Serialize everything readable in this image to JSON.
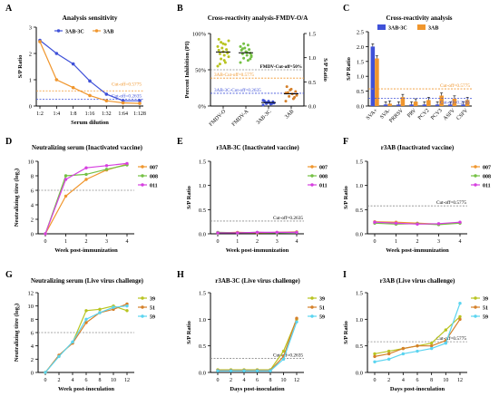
{
  "colors": {
    "blue": "#3F51D8",
    "orange": "#F0962D",
    "gray": "#8C8C8C",
    "green": "#74C044",
    "magenta": "#D63FE0",
    "cyan": "#5BD4F0",
    "olive": "#B8C420",
    "darkorange": "#D5802A",
    "refline": "#6E6E6E"
  },
  "chart_data": [
    {
      "id": "A",
      "panel_label": "A",
      "type": "line",
      "title": "Analysis sensitivity",
      "xlabel": "Serum dilution",
      "ylabel": "S/P Ratio",
      "categories": [
        "1:2",
        "1:4",
        "1:8",
        "1:16",
        "1:32",
        "1:64",
        "1:128"
      ],
      "ylim": [
        0,
        3
      ],
      "yticks": [
        "0",
        "1",
        "2",
        "3"
      ],
      "legend": [
        "3AB-3C",
        "3AB"
      ],
      "series": [
        {
          "name": "3AB-3C",
          "color": "blue",
          "values": [
            2.5,
            2.0,
            1.6,
            0.95,
            0.45,
            0.2,
            0.2
          ]
        },
        {
          "name": "3AB",
          "color": "orange",
          "values": [
            2.45,
            1.0,
            0.7,
            0.4,
            0.2,
            0.12,
            0.1
          ]
        }
      ],
      "reflines": [
        {
          "y": 0.5775,
          "color": "orange",
          "label": "Cut-off=0.5775"
        },
        {
          "y": 0.2635,
          "color": "blue",
          "label": "Cut-off=0.2635"
        }
      ]
    },
    {
      "id": "B",
      "panel_label": "B",
      "type": "scatter",
      "title": "Cross-reactivity analysis-FMDV-O/A",
      "ylabel": "Percent Inhibition (PI)",
      "y2label": "S/P Ratio",
      "categories": [
        "FMDV-O",
        "FMDV-A",
        "3AB-3C",
        "3AB"
      ],
      "yticks": [
        "0%",
        "50%",
        "100%"
      ],
      "y2ticks": [
        "0.0",
        "0.5",
        "1.0",
        "1.5"
      ],
      "points": [
        {
          "cat": "FMDV-O",
          "color": "olive",
          "pct": [
            55,
            60,
            65,
            68,
            70,
            72,
            74,
            75,
            77,
            78,
            80,
            82,
            85,
            88,
            90,
            63,
            58,
            73,
            86,
            92
          ]
        },
        {
          "cat": "FMDV-A",
          "color": "green",
          "pct": [
            60,
            63,
            66,
            68,
            70,
            72,
            73,
            75,
            77,
            78,
            80,
            82,
            84,
            86,
            70,
            74,
            79,
            65
          ]
        },
        {
          "cat": "3AB-3C",
          "color": "blue",
          "sp": [
            0.02,
            0.04,
            0.05,
            0.06,
            0.07,
            0.08,
            0.09,
            0.1,
            0.11,
            0.05,
            0.07,
            0.12
          ]
        },
        {
          "cat": "3AB",
          "color": "darkorange",
          "sp": [
            0.1,
            0.15,
            0.2,
            0.22,
            0.25,
            0.28,
            0.3,
            0.35,
            0.4,
            0.18,
            0.33,
            0.27
          ]
        }
      ],
      "reflines": [
        {
          "pct": 50,
          "color": "gray",
          "label": "FMDV-Cut-off=50%"
        },
        {
          "sp": 0.5775,
          "color": "orange",
          "label": "3AB-Cut-off=0.5775"
        },
        {
          "sp": 0.2635,
          "color": "blue",
          "label": "3AB-3C-Cut-off=0.2635"
        }
      ]
    },
    {
      "id": "C",
      "panel_label": "C",
      "type": "bar",
      "title": "Cross-reactivity analysis",
      "ylabel": "S/P Ratio",
      "categories": [
        "SVA+",
        "SVA-",
        "PRRSV",
        "PRV",
        "PCV2",
        "PCV3",
        "ASFV",
        "CSFV"
      ],
      "ylim": [
        0,
        2.5
      ],
      "yticks": [
        "0.0",
        "0.5",
        "1.0",
        "1.5",
        "2.0",
        "2.5"
      ],
      "legend": [
        "3AB-3C",
        "3AB"
      ],
      "series": [
        {
          "name": "3AB-3C",
          "color": "blue",
          "values": [
            2.0,
            0.05,
            0.05,
            0.05,
            0.05,
            0.05,
            0.05,
            0.05
          ]
        },
        {
          "name": "3AB",
          "color": "orange",
          "values": [
            1.6,
            0.08,
            0.3,
            0.15,
            0.2,
            0.35,
            0.25,
            0.2
          ]
        }
      ],
      "reflines": [
        {
          "y": 0.5775,
          "color": "orange",
          "label": "Cut-off=0.5775"
        },
        {
          "y": 0.2635,
          "color": "blue",
          "label": "Cut-off=0.2635"
        }
      ]
    },
    {
      "id": "D",
      "panel_label": "D",
      "type": "line",
      "title": "Neutralizing serum (Inactivated vaccine)",
      "xlabel": "Week post-immunization",
      "ylabel": "Neutralizing titre (log₂)",
      "categories": [
        "0",
        "1",
        "2",
        "3",
        "4"
      ],
      "ylim": [
        0,
        10
      ],
      "yticks": [
        "0",
        "2",
        "4",
        "6",
        "8",
        "10"
      ],
      "legend": [
        "007",
        "008",
        "011"
      ],
      "series": [
        {
          "name": "007",
          "color": "orange",
          "values": [
            0,
            5.2,
            7.5,
            8.8,
            9.6
          ]
        },
        {
          "name": "008",
          "color": "green",
          "values": [
            0,
            8.0,
            8.2,
            8.9,
            9.5
          ]
        },
        {
          "name": "011",
          "color": "magenta",
          "values": [
            0,
            7.5,
            9.1,
            9.4,
            9.7
          ]
        }
      ],
      "reflines": [
        {
          "y": 6,
          "color": "gray",
          "label": ""
        }
      ]
    },
    {
      "id": "E",
      "panel_label": "E",
      "type": "line",
      "title": "r3AB-3C (Inactivated vaccine)",
      "xlabel": "Week post-immunization",
      "ylabel": "S/P Ratio",
      "categories": [
        "0",
        "1",
        "2",
        "3",
        "4"
      ],
      "ylim": [
        0,
        1.5
      ],
      "yticks": [
        "0.0",
        "0.5",
        "1.0",
        "1.5"
      ],
      "legend": [
        "007",
        "008",
        "011"
      ],
      "series": [
        {
          "name": "007",
          "color": "orange",
          "values": [
            0.02,
            0.03,
            0.02,
            0.03,
            0.04
          ]
        },
        {
          "name": "008",
          "color": "green",
          "values": [
            0.03,
            0.02,
            0.03,
            0.02,
            0.03
          ]
        },
        {
          "name": "011",
          "color": "magenta",
          "values": [
            0.02,
            0.02,
            0.03,
            0.03,
            0.03
          ]
        }
      ],
      "reflines": [
        {
          "y": 0.2635,
          "color": "gray",
          "label": "Cut-off=0.2635"
        }
      ]
    },
    {
      "id": "F",
      "panel_label": "F",
      "type": "line",
      "title": "r3AB (Inactivated vaccine)",
      "xlabel": "Week post-immunization",
      "ylabel": "S/P Ratio",
      "categories": [
        "0",
        "1",
        "2",
        "3",
        "4"
      ],
      "ylim": [
        0,
        1.5
      ],
      "yticks": [
        "0.0",
        "0.5",
        "1.0",
        "1.5"
      ],
      "legend": [
        "007",
        "008",
        "011"
      ],
      "series": [
        {
          "name": "007",
          "color": "orange",
          "values": [
            0.25,
            0.24,
            0.22,
            0.2,
            0.23
          ]
        },
        {
          "name": "008",
          "color": "green",
          "values": [
            0.22,
            0.2,
            0.21,
            0.19,
            0.22
          ]
        },
        {
          "name": "011",
          "color": "magenta",
          "values": [
            0.24,
            0.22,
            0.2,
            0.21,
            0.24
          ]
        }
      ],
      "reflines": [
        {
          "y": 0.5775,
          "color": "gray",
          "label": "Cut-off=0.5775"
        }
      ]
    },
    {
      "id": "G",
      "panel_label": "G",
      "type": "line",
      "title": "Neutralizing serum (Live virus challenge)",
      "xlabel": "Week post-inoculation",
      "ylabel": "Neutralizing titre (log₂)",
      "categories": [
        "0",
        "2",
        "4",
        "6",
        "8",
        "10",
        "12"
      ],
      "ylim": [
        0,
        12
      ],
      "yticks": [
        "0",
        "2",
        "4",
        "6",
        "8",
        "10",
        "12"
      ],
      "legend": [
        "39",
        "51",
        "59"
      ],
      "series": [
        {
          "name": "39",
          "color": "olive",
          "values": [
            0,
            2.5,
            4.5,
            9.3,
            9.5,
            10,
            9.3
          ]
        },
        {
          "name": "51",
          "color": "darkorange",
          "values": [
            0,
            2.6,
            4.4,
            7.5,
            9.0,
            9.5,
            10.3
          ]
        },
        {
          "name": "59",
          "color": "cyan",
          "values": [
            0,
            2.4,
            4.6,
            8.0,
            9.0,
            9.8,
            10.0
          ]
        }
      ],
      "reflines": [
        {
          "y": 6,
          "color": "gray",
          "label": ""
        }
      ]
    },
    {
      "id": "H",
      "panel_label": "H",
      "type": "line",
      "title": "r3AB-3C (Live virus challenge)",
      "xlabel": "Days post-inoculation",
      "ylabel": "S/P Ratio",
      "categories": [
        "0",
        "2",
        "4",
        "6",
        "8",
        "10",
        "12"
      ],
      "ylim": [
        0,
        1.5
      ],
      "yticks": [
        "0.0",
        "0.5",
        "1.0",
        "1.5"
      ],
      "legend": [
        "39",
        "51",
        "59"
      ],
      "series": [
        {
          "name": "39",
          "color": "olive",
          "values": [
            0.05,
            0.05,
            0.05,
            0.05,
            0.05,
            0.4,
            1.0
          ]
        },
        {
          "name": "51",
          "color": "darkorange",
          "values": [
            0.04,
            0.04,
            0.04,
            0.04,
            0.04,
            0.3,
            1.02
          ]
        },
        {
          "name": "59",
          "color": "cyan",
          "values": [
            0.03,
            0.03,
            0.03,
            0.03,
            0.03,
            0.25,
            0.95
          ]
        }
      ],
      "reflines": [
        {
          "y": 0.2635,
          "color": "gray",
          "label": "Cut-off=0.2635"
        }
      ]
    },
    {
      "id": "I",
      "panel_label": "I",
      "type": "line",
      "title": "r3AB (Live virus challenge)",
      "xlabel": "Days post-inoculation",
      "ylabel": "S/P Ratio",
      "categories": [
        "0",
        "2",
        "4",
        "6",
        "8",
        "10",
        "12"
      ],
      "ylim": [
        0,
        1.5
      ],
      "yticks": [
        "0.0",
        "0.5",
        "1.0",
        "1.5"
      ],
      "legend": [
        "39",
        "51",
        "59"
      ],
      "series": [
        {
          "name": "39",
          "color": "olive",
          "values": [
            0.35,
            0.4,
            0.45,
            0.5,
            0.55,
            0.8,
            1.05
          ]
        },
        {
          "name": "51",
          "color": "darkorange",
          "values": [
            0.3,
            0.35,
            0.45,
            0.5,
            0.5,
            0.6,
            1.0
          ]
        },
        {
          "name": "59",
          "color": "cyan",
          "values": [
            0.2,
            0.25,
            0.35,
            0.4,
            0.45,
            0.55,
            1.3
          ]
        }
      ],
      "reflines": [
        {
          "y": 0.5775,
          "color": "gray",
          "label": "Cut-off=0.5775"
        }
      ]
    }
  ]
}
